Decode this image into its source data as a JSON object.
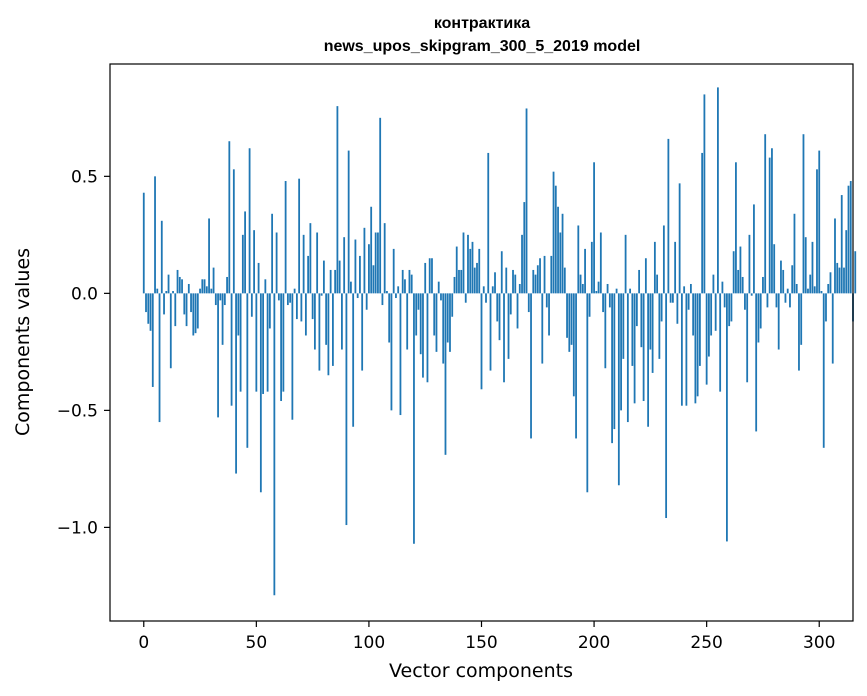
{
  "chart_data": {
    "type": "bar",
    "title": "контрактика",
    "subtitle": "news_upos_skipgram_300_5_2019 model",
    "xlabel": "Vector components",
    "ylabel": "Components values",
    "xlim": [
      -15,
      315
    ],
    "ylim": [
      -1.4,
      0.98
    ],
    "xticks": [
      0,
      50,
      100,
      150,
      200,
      250,
      300
    ],
    "yticks": [
      0.5,
      0.0,
      -0.5,
      -1.0
    ],
    "xtick_labels": [
      "0",
      "50",
      "100",
      "150",
      "200",
      "250",
      "300"
    ],
    "ytick_labels": [
      "0.5",
      "0.0",
      "−0.5",
      "−1.0"
    ],
    "grid": false,
    "bar_color": "#1f77b4",
    "values": [
      0.43,
      -0.08,
      -0.13,
      -0.16,
      -0.4,
      0.5,
      0.02,
      -0.55,
      0.31,
      -0.09,
      0.01,
      0.08,
      -0.32,
      0.01,
      -0.14,
      0.1,
      0.07,
      0.06,
      -0.09,
      -0.14,
      0.04,
      -0.08,
      -0.18,
      -0.17,
      -0.15,
      0.02,
      0.06,
      0.06,
      0.03,
      0.32,
      0.02,
      0.11,
      -0.05,
      -0.53,
      -0.03,
      -0.22,
      -0.05,
      0.07,
      0.65,
      -0.48,
      0.53,
      -0.77,
      -0.18,
      -0.42,
      0.25,
      0.35,
      -0.66,
      0.62,
      -0.1,
      0.27,
      -0.42,
      0.13,
      -0.85,
      -0.43,
      0.06,
      -0.42,
      -0.15,
      0.34,
      -1.29,
      0.26,
      -0.03,
      -0.46,
      -0.42,
      0.48,
      -0.05,
      -0.04,
      -0.54,
      0.02,
      -0.11,
      0.49,
      -0.12,
      0.25,
      -0.18,
      0.16,
      0.3,
      -0.11,
      -0.24,
      0.26,
      -0.33,
      -0.01,
      0.14,
      -0.22,
      -0.35,
      0.1,
      -0.31,
      0.1,
      0.8,
      0.14,
      -0.24,
      0.24,
      -0.99,
      0.61,
      0.05,
      -0.57,
      0.23,
      -0.02,
      0.16,
      -0.33,
      0.28,
      -0.07,
      0.21,
      0.37,
      0.12,
      0.26,
      0.26,
      0.75,
      -0.05,
      0.3,
      0.01,
      -0.21,
      -0.5,
      0.19,
      -0.02,
      0.03,
      -0.52,
      0.1,
      0.06,
      -0.24,
      0.1,
      0.08,
      -1.07,
      -0.18,
      -0.07,
      -0.26,
      -0.36,
      0.13,
      -0.38,
      0.15,
      0.15,
      -0.18,
      -0.25,
      0.05,
      -0.03,
      -0.3,
      -0.69,
      -0.21,
      -0.25,
      -0.1,
      0.07,
      0.2,
      0.1,
      0.1,
      0.26,
      -0.04,
      0.25,
      0.19,
      0.22,
      0.11,
      0.13,
      0.19,
      -0.41,
      0.03,
      -0.04,
      0.6,
      -0.33,
      0.03,
      0.09,
      -0.12,
      -0.2,
      0.18,
      -0.38,
      0.11,
      -0.28,
      -0.09,
      0.1,
      0.08,
      -0.15,
      0.04,
      0.25,
      0.39,
      0.79,
      -0.08,
      -0.62,
      0.1,
      0.08,
      0.12,
      0.15,
      -0.3,
      0.16,
      -0.06,
      -0.18,
      0.16,
      0.52,
      0.46,
      0.37,
      0.26,
      0.34,
      0.11,
      -0.19,
      -0.25,
      -0.22,
      -0.44,
      -0.62,
      0.29,
      0.08,
      0.04,
      0.19,
      -0.85,
      -0.1,
      0.22,
      0.56,
      0.01,
      0.05,
      0.26,
      -0.08,
      -0.32,
      0.04,
      -0.06,
      -0.64,
      -0.58,
      0.02,
      -0.82,
      -0.5,
      -0.28,
      0.25,
      -0.55,
      0.02,
      -0.31,
      -0.47,
      -0.14,
      0.1,
      -0.23,
      -0.46,
      0.15,
      -0.57,
      -0.24,
      -0.34,
      0.22,
      0.08,
      -0.28,
      -0.12,
      0.29,
      -0.96,
      0.66,
      -0.04,
      -0.04,
      0.22,
      -0.13,
      0.47,
      -0.48,
      0.03,
      -0.48,
      -0.07,
      0.04,
      -0.18,
      -0.47,
      -0.44,
      -0.31,
      0.6,
      0.85,
      -0.39,
      -0.27,
      -0.18,
      0.08,
      -0.16,
      0.88,
      -0.42,
      0.05,
      -0.06,
      -1.06,
      -0.14,
      -0.12,
      0.18,
      0.56,
      0.1,
      0.2,
      0.07,
      -0.07,
      -0.38,
      0.25,
      -0.01,
      0.38,
      -0.59,
      -0.21,
      -0.15,
      0.07,
      0.68,
      -0.06,
      0.58,
      0.62,
      0.21,
      -0.06,
      -0.24,
      0.14,
      0.1,
      -0.04,
      0.02,
      -0.06,
      0.12,
      0.34,
      0.04,
      -0.33,
      -0.22,
      0.68,
      0.24,
      0.02,
      0.08,
      0.22,
      0.03,
      0.53,
      0.61,
      0.01,
      -0.66,
      -0.12,
      0.04,
      0.09,
      -0.3,
      0.32,
      0.13,
      0.11,
      0.42,
      0.11,
      0.27,
      0.46,
      0.48,
      -0.12,
      0.18
    ],
    "value_note": "values estimated by reading bar heights off the y-axis; index i corresponds to vector component i"
  }
}
